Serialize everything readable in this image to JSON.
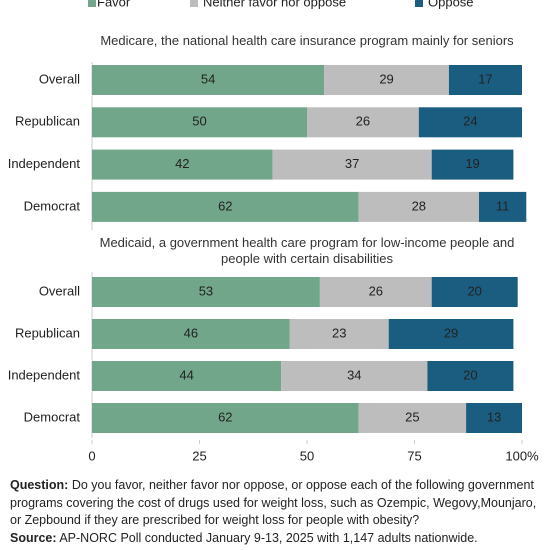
{
  "chart_data": [
    {
      "type": "bar",
      "orientation": "horizontal",
      "stacked": true,
      "title": "Medicare, the national health care insurance program mainly for seniors",
      "categories": [
        "Overall",
        "Republican",
        "Independent",
        "Democrat"
      ],
      "series": [
        {
          "name": "Favor",
          "color": "#72a68a",
          "values": [
            54,
            50,
            42,
            62
          ]
        },
        {
          "name": "Neither favor nor oppose",
          "color": "#bdbdbd",
          "values": [
            29,
            26,
            37,
            28
          ]
        },
        {
          "name": "Oppose",
          "color": "#1b5d80",
          "values": [
            17,
            24,
            19,
            11
          ]
        }
      ],
      "xlim": [
        0,
        100
      ]
    },
    {
      "type": "bar",
      "orientation": "horizontal",
      "stacked": true,
      "title": "Medicaid, a government health care program for low-income people and people with certain disabilities",
      "categories": [
        "Overall",
        "Republican",
        "Independent",
        "Democrat"
      ],
      "series": [
        {
          "color": "#72a68a",
          "values": [
            53,
            46,
            44,
            62
          ]
        },
        {
          "color": "#bdbdbd",
          "values": [
            26,
            23,
            34,
            25
          ]
        },
        {
          "color": "#1b5d80",
          "values": [
            20,
            29,
            20,
            13
          ]
        }
      ],
      "xlim": [
        0,
        100
      ],
      "xticks": [
        0,
        25,
        50,
        75,
        {
          "value": 100,
          "label": "100%"
        }
      ]
    }
  ],
  "footnote": {
    "question_label": "Question:",
    "question": "Do you favor, neither favor nor oppose, or oppose each of the following government programs covering the cost of drugs used for weight loss, such as Ozempic, Wegovy,Mounjaro, or Zepbound if they are prescribed for weight loss for people with obesity?",
    "source_label": "Source:",
    "source": "AP-NORC Poll conducted January 9-13, 2025 with 1,147 adults nationwide."
  }
}
